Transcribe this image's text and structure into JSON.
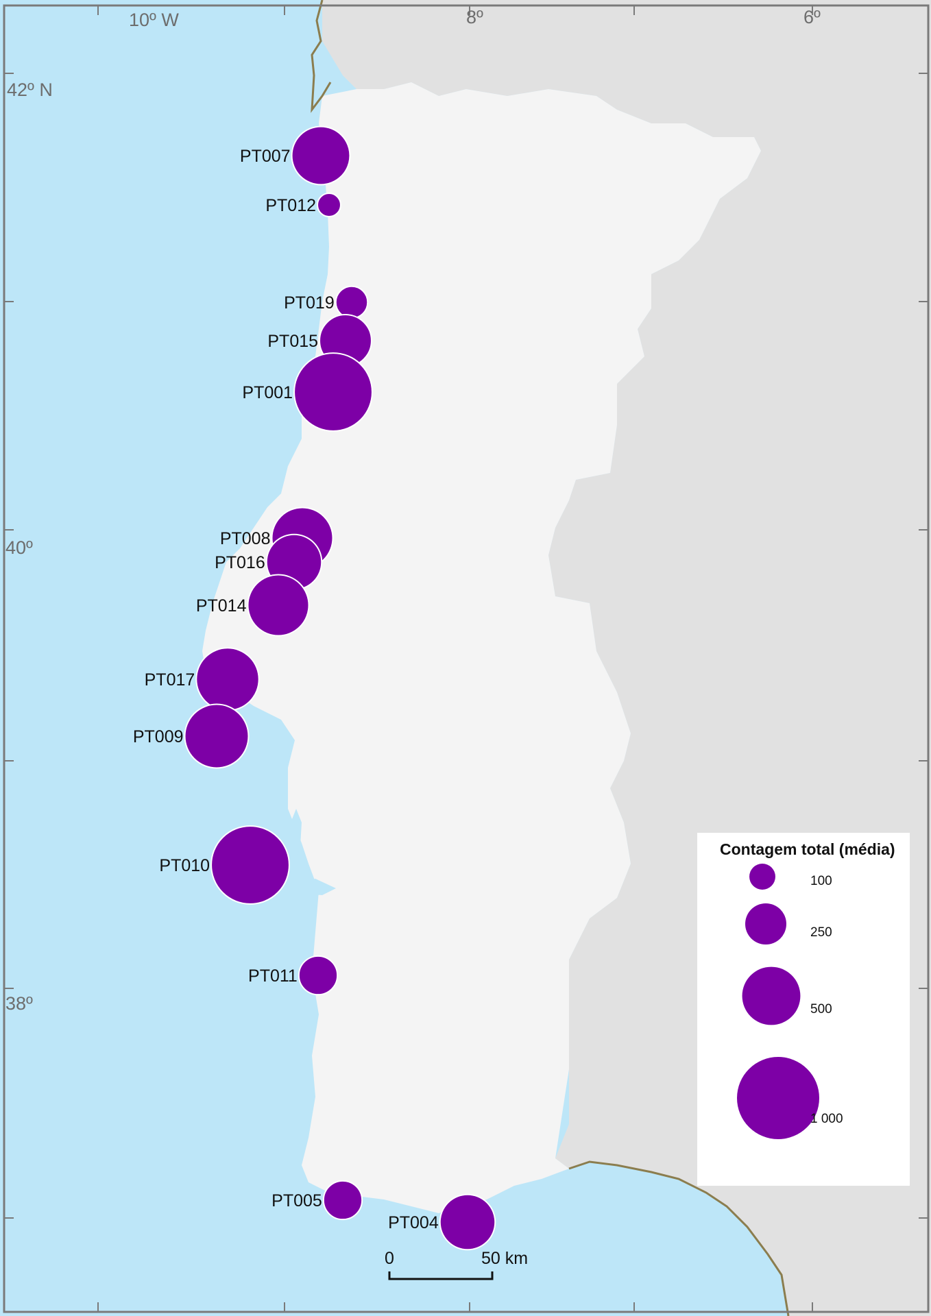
{
  "graticule": {
    "lon_labels": [
      "10º W",
      "8º",
      "6º"
    ],
    "lat_labels": [
      "42º N",
      "40º",
      "38º"
    ]
  },
  "legend": {
    "title": "Contagem total (média)",
    "items": [
      {
        "value": 100,
        "label": "100"
      },
      {
        "value": 250,
        "label": "250"
      },
      {
        "value": 500,
        "label": "500"
      },
      {
        "value": 1000,
        "label": "1 000"
      }
    ]
  },
  "scale_bar": {
    "label_start": "0",
    "label_end": "50 km"
  },
  "colors": {
    "sea": "#bde6f8",
    "land_portugal": "#f4f4f4",
    "land_spain": "#e1e1e1",
    "symbol": "#7d00a6",
    "border": "#8b7d4e"
  },
  "sites": [
    {
      "id": "PT007",
      "label": "PT007",
      "count": 500
    },
    {
      "id": "PT012",
      "label": "PT012",
      "count": 80
    },
    {
      "id": "PT019",
      "label": "PT019",
      "count": 150
    },
    {
      "id": "PT015",
      "label": "PT015",
      "count": 400
    },
    {
      "id": "PT001",
      "label": "PT001",
      "count": 900
    },
    {
      "id": "PT008",
      "label": "PT008",
      "count": 550
    },
    {
      "id": "PT016",
      "label": "PT016",
      "count": 450
    },
    {
      "id": "PT014",
      "label": "PT014",
      "count": 550
    },
    {
      "id": "PT017",
      "label": "PT017",
      "count": 580
    },
    {
      "id": "PT009",
      "label": "PT009",
      "count": 600
    },
    {
      "id": "PT010",
      "label": "PT010",
      "count": 900
    },
    {
      "id": "PT011",
      "label": "PT011",
      "count": 220
    },
    {
      "id": "PT005",
      "label": "PT005",
      "count": 220
    },
    {
      "id": "PT004",
      "label": "PT004",
      "count": 450
    }
  ]
}
